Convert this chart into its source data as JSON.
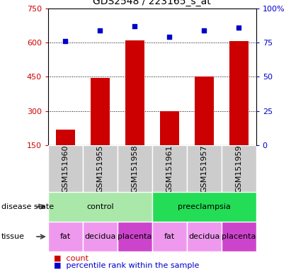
{
  "title": "GDS2548 / 223165_s_at",
  "samples": [
    "GSM151960",
    "GSM151955",
    "GSM151958",
    "GSM151961",
    "GSM151957",
    "GSM151959"
  ],
  "counts": [
    220,
    445,
    610,
    300,
    450,
    605
  ],
  "percentile_ranks": [
    76,
    84,
    87,
    79,
    84,
    86
  ],
  "ylim_left": [
    150,
    750
  ],
  "yticks_left": [
    150,
    300,
    450,
    600,
    750
  ],
  "ylim_right": [
    0,
    100
  ],
  "yticks_right": [
    0,
    25,
    50,
    75,
    100
  ],
  "bar_color": "#cc0000",
  "dot_color": "#0000cc",
  "bar_width": 0.55,
  "disease_state": [
    {
      "label": "control",
      "span": [
        0,
        3
      ],
      "color": "#aae8aa"
    },
    {
      "label": "preeclampsia",
      "span": [
        3,
        6
      ],
      "color": "#22dd55"
    }
  ],
  "tissue": [
    {
      "label": "fat",
      "span": [
        0,
        1
      ],
      "color": "#ee99ee"
    },
    {
      "label": "decidua",
      "span": [
        1,
        2
      ],
      "color": "#ee99ee"
    },
    {
      "label": "placenta",
      "span": [
        2,
        3
      ],
      "color": "#cc44cc"
    },
    {
      "label": "fat",
      "span": [
        3,
        4
      ],
      "color": "#ee99ee"
    },
    {
      "label": "decidua",
      "span": [
        4,
        5
      ],
      "color": "#ee99ee"
    },
    {
      "label": "placenta",
      "span": [
        5,
        6
      ],
      "color": "#cc44cc"
    }
  ],
  "legend_count_label": "count",
  "legend_percentile_label": "percentile rank within the sample",
  "disease_state_label": "disease state",
  "tissue_label": "tissue",
  "grid_color": "#000000",
  "sample_box_color": "#cccccc",
  "left_tick_color": "#cc0000",
  "right_tick_color": "#0000cc",
  "title_fontsize": 10,
  "tick_fontsize": 8,
  "label_fontsize": 8,
  "sample_fontsize": 8,
  "annotation_fontsize": 8,
  "legend_fontsize": 8
}
